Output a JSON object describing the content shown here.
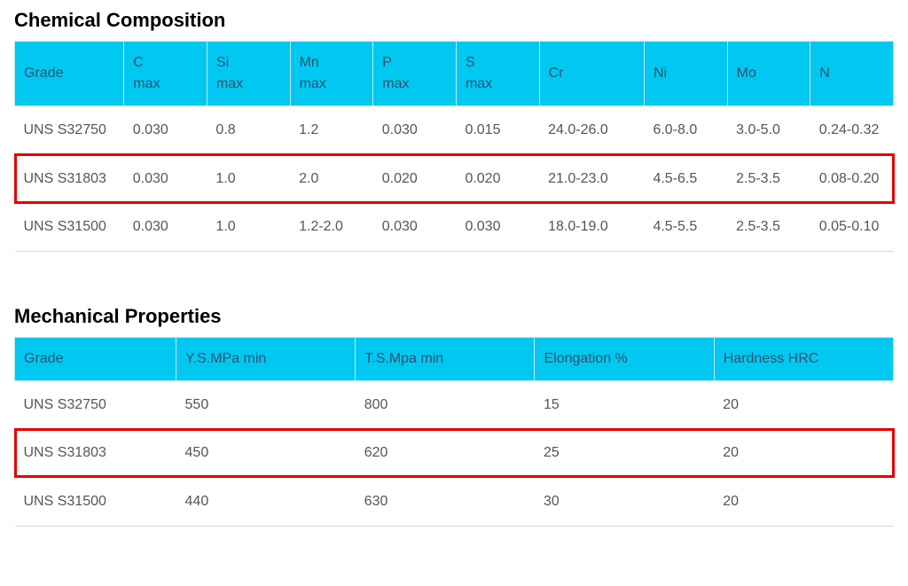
{
  "colors": {
    "header_bg": "#00c8f0",
    "header_text": "#305070",
    "row_border": "#d8d8d8",
    "highlight_border": "#e60000",
    "title_color": "#000000",
    "body_text": "#555555",
    "page_bg": "#ffffff"
  },
  "typography": {
    "title_fontsize_pt": 17,
    "body_fontsize_pt": 12,
    "font_family": "Arial"
  },
  "chemical": {
    "title": "Chemical Composition",
    "type": "table",
    "highlight_row_index": 1,
    "columns": [
      "Grade",
      "C\nmax",
      "Si\nmax",
      "Mn\nmax",
      "P\nmax",
      "S\nmax",
      "Cr",
      "Ni",
      "Mo",
      "N"
    ],
    "rows": [
      [
        "UNS S32750",
        "0.030",
        "0.8",
        "1.2",
        "0.030",
        "0.015",
        "24.0-26.0",
        "6.0-8.0",
        "3.0-5.0",
        "0.24-0.32"
      ],
      [
        "UNS S31803",
        "0.030",
        "1.0",
        "2.0",
        "0.020",
        "0.020",
        "21.0-23.0",
        "4.5-6.5",
        "2.5-3.5",
        "0.08-0.20"
      ],
      [
        "UNS S31500",
        "0.030",
        "1.0",
        "1.2-2.0",
        "0.030",
        "0.030",
        "18.0-19.0",
        "4.5-5.5",
        "2.5-3.5",
        "0.05-0.10"
      ]
    ]
  },
  "mechanical": {
    "title": "Mechanical Properties",
    "type": "table",
    "highlight_row_index": 1,
    "columns": [
      "Grade",
      "Y.S.MPa min",
      "T.S.Mpa min",
      "Elongation %",
      "Hardness HRC"
    ],
    "rows": [
      [
        "UNS S32750",
        "550",
        "800",
        "15",
        "20"
      ],
      [
        "UNS S31803",
        "450",
        "620",
        "25",
        "20"
      ],
      [
        "UNS S31500",
        "440",
        "630",
        "30",
        "20"
      ]
    ]
  }
}
